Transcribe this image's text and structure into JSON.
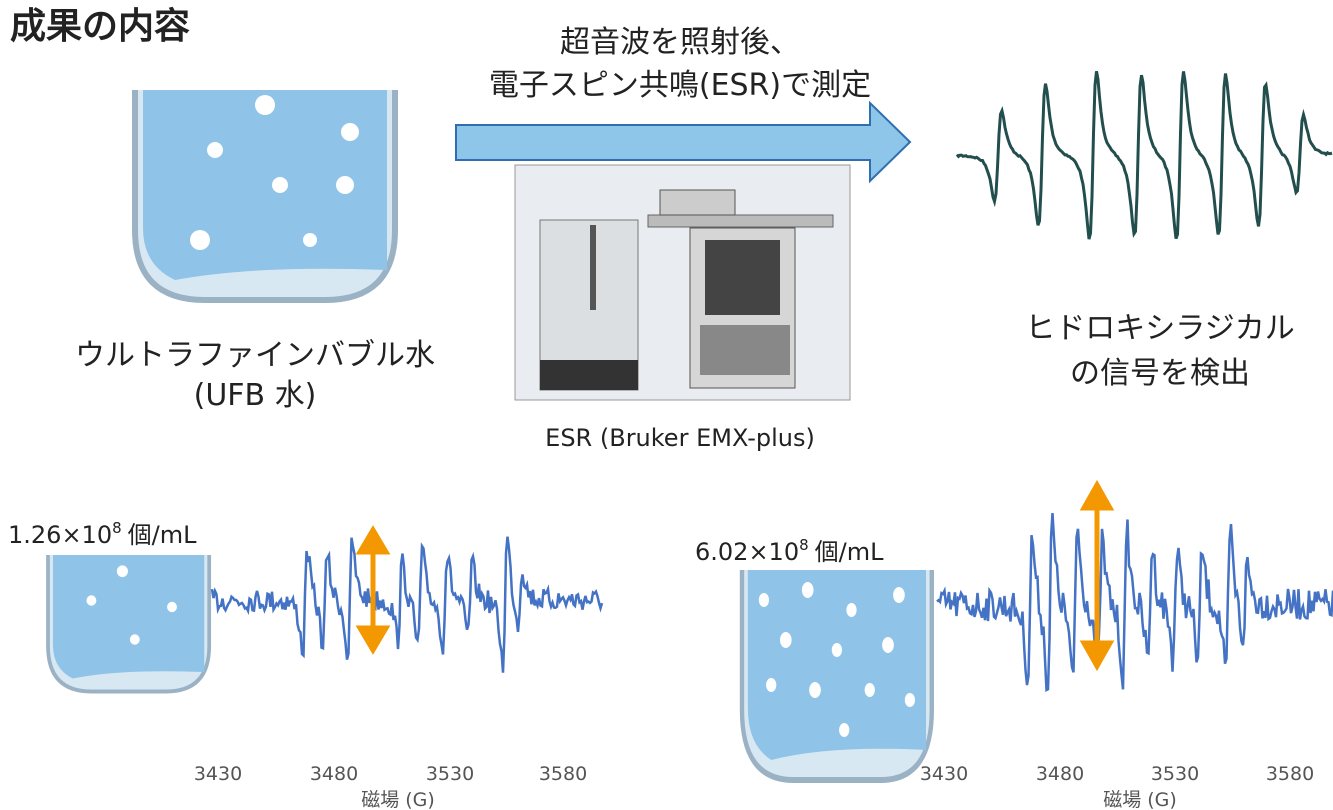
{
  "title": "成果の内容",
  "arrow_label": [
    "超音波を照射後、",
    "電子スピン共鳴(ESR)で測定"
  ],
  "sample_label": [
    "ウルトラファインバブル水",
    "(UFB 水)"
  ],
  "instrument_label": "ESR (Bruker EMX-plus)",
  "result_label": [
    "ヒドロキシラジカル",
    "の信号を検出"
  ],
  "spectra": [
    {
      "concentration": {
        "base": "1.26×10",
        "exponent": "8",
        "unit": "個/mL"
      },
      "xticks": [
        "3430",
        "3480",
        "3530",
        "3580"
      ],
      "xlabel": "磁場 (G)"
    },
    {
      "concentration": {
        "base": "6.02×10",
        "exponent": "8",
        "unit": "個/mL"
      },
      "xticks": [
        "3430",
        "3480",
        "3530",
        "3580"
      ],
      "xlabel": "磁場 (G)"
    }
  ]
}
